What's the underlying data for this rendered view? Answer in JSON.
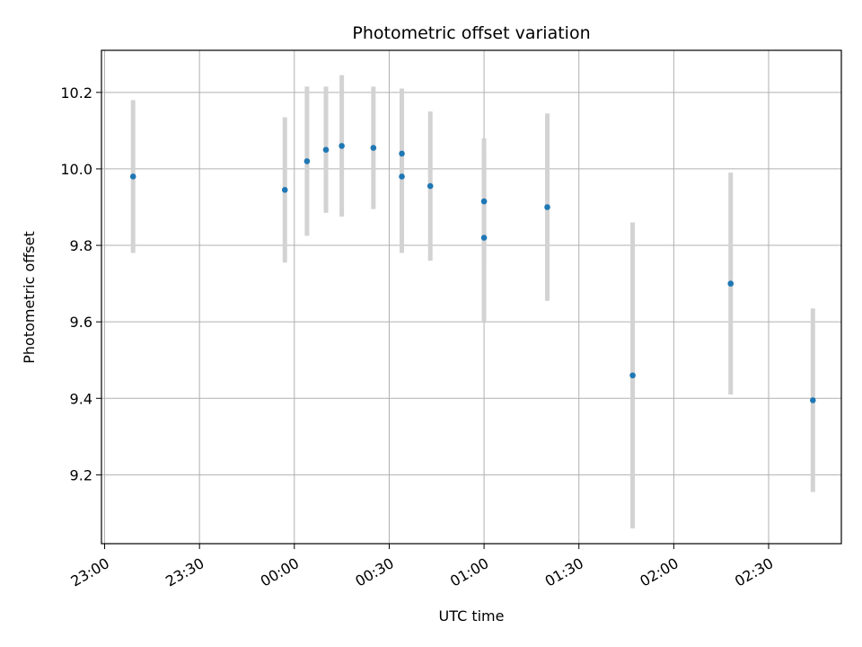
{
  "chart_data": {
    "type": "scatter",
    "title": "Photometric offset variation",
    "xlabel": "UTC time",
    "ylabel": "Photometric offset",
    "x_ticks": [
      "23:00",
      "23:30",
      "00:00",
      "00:30",
      "01:00",
      "01:30",
      "02:00",
      "02:30"
    ],
    "y_ticks": [
      "9.2",
      "9.4",
      "9.6",
      "9.8",
      "10.0",
      "10.2"
    ],
    "y_tick_values": [
      9.2,
      9.4,
      9.6,
      9.8,
      10.0,
      10.2
    ],
    "xlim": [
      "23:00",
      "02:53"
    ],
    "ylim": [
      9.02,
      10.31
    ],
    "grid": true,
    "colors": {
      "point": "#1f77b4",
      "errorbar": "#d3d3d3",
      "grid": "#b0b0b0"
    },
    "series": [
      {
        "points": [
          {
            "x": "23:09",
            "y": 9.98,
            "yerr": 0.2
          },
          {
            "x": "23:57",
            "y": 9.945,
            "yerr": 0.19
          },
          {
            "x": "00:04",
            "y": 10.02,
            "yerr": 0.195
          },
          {
            "x": "00:10",
            "y": 10.05,
            "yerr": 0.165
          },
          {
            "x": "00:15",
            "y": 10.06,
            "yerr": 0.185
          },
          {
            "x": "00:25",
            "y": 10.055,
            "yerr": 0.16
          },
          {
            "x": "00:34",
            "y": 10.04,
            "yerr": 0.17
          },
          {
            "x": "00:34",
            "y": 9.98,
            "yerr": 0.2
          },
          {
            "x": "00:43",
            "y": 9.955,
            "yerr": 0.195
          },
          {
            "x": "01:00",
            "y": 9.915,
            "yerr": 0.165
          },
          {
            "x": "01:00",
            "y": 9.82,
            "yerr": 0.22
          },
          {
            "x": "01:20",
            "y": 9.9,
            "yerr": 0.245
          },
          {
            "x": "01:47",
            "y": 9.46,
            "yerr": 0.4
          },
          {
            "x": "02:18",
            "y": 9.7,
            "yerr": 0.29
          },
          {
            "x": "02:44",
            "y": 9.395,
            "yerr": 0.24
          }
        ]
      }
    ]
  }
}
